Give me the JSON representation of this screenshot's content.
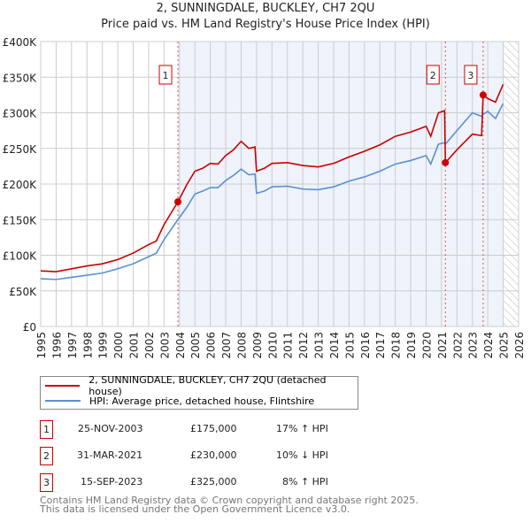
{
  "title": "2, SUNNINGDALE, BUCKLEY, CH7 2QU",
  "subtitle": "Price paid vs. HM Land Registry's House Price Index (HPI)",
  "chart_data": {
    "type": "line",
    "xlim": [
      1995,
      2026
    ],
    "ylim": [
      0,
      400000
    ],
    "yticks": [
      {
        "v": 0,
        "l": "£0"
      },
      {
        "v": 50000,
        "l": "£50K"
      },
      {
        "v": 100000,
        "l": "£100K"
      },
      {
        "v": 150000,
        "l": "£150K"
      },
      {
        "v": 200000,
        "l": "£200K"
      },
      {
        "v": 250000,
        "l": "£250K"
      },
      {
        "v": 300000,
        "l": "£300K"
      },
      {
        "v": 350000,
        "l": "£350K"
      },
      {
        "v": 400000,
        "l": "£400K"
      }
    ],
    "xticks": [
      "1995",
      "1996",
      "1997",
      "1998",
      "1999",
      "2000",
      "2001",
      "2002",
      "2003",
      "2004",
      "2005",
      "2006",
      "2007",
      "2008",
      "2009",
      "2010",
      "2011",
      "2012",
      "2013",
      "2014",
      "2015",
      "2016",
      "2017",
      "2018",
      "2019",
      "2020",
      "2021",
      "2022",
      "2023",
      "2024",
      "2025",
      "2026"
    ],
    "shaded_region": [
      2003.9,
      2025.0
    ],
    "hatched_region": [
      2025.0,
      2026
    ],
    "series": [
      {
        "name": "2, SUNNINGDALE, BUCKLEY, CH7 2QU (detached house)",
        "color": "#cc0000",
        "x": [
          1995,
          1996,
          1997,
          1998,
          1999,
          2000,
          2001,
          2002,
          2002.5,
          2003,
          2003.9,
          2004.5,
          2005,
          2005.5,
          2006,
          2006.5,
          2007,
          2007.5,
          2008,
          2008.5,
          2008.9,
          2009,
          2009.5,
          2010,
          2011,
          2012,
          2013,
          2014,
          2015,
          2016,
          2017,
          2018,
          2019,
          2020,
          2020.3,
          2020.8,
          2021.2,
          2021.25,
          2022,
          2023,
          2023.6,
          2023.7,
          2024,
          2024.5,
          2025
        ],
        "y": [
          78000,
          77000,
          81000,
          85000,
          88000,
          94000,
          103000,
          115000,
          120000,
          143000,
          175000,
          200000,
          218000,
          222000,
          229000,
          228000,
          240000,
          248000,
          260000,
          250000,
          252000,
          218000,
          222000,
          229000,
          230000,
          226000,
          224000,
          229000,
          238000,
          246000,
          255000,
          267000,
          273000,
          281000,
          267000,
          300000,
          303000,
          230000,
          248000,
          270000,
          268000,
          325000,
          320000,
          315000,
          340000
        ]
      },
      {
        "name": "HPI: Average price, detached house, Flintshire",
        "color": "#5b8fd4",
        "x": [
          1995,
          1996,
          1997,
          1998,
          1999,
          2000,
          2001,
          2002,
          2002.5,
          2003,
          2003.9,
          2004.5,
          2005,
          2005.5,
          2006,
          2006.5,
          2007,
          2007.5,
          2008,
          2008.5,
          2008.9,
          2009,
          2009.5,
          2010,
          2011,
          2012,
          2013,
          2014,
          2015,
          2016,
          2017,
          2018,
          2019,
          2020,
          2020.3,
          2020.8,
          2021.2,
          2021.25,
          2022,
          2023,
          2023.6,
          2023.7,
          2024,
          2024.5,
          2025
        ],
        "y": [
          67000,
          66000,
          69000,
          72000,
          75000,
          81000,
          88000,
          98000,
          103000,
          122000,
          150000,
          168000,
          186000,
          190000,
          195000,
          195000,
          205000,
          212000,
          221000,
          213000,
          214000,
          187000,
          190000,
          196000,
          197000,
          193000,
          192000,
          196000,
          204000,
          210000,
          218000,
          228000,
          233000,
          240000,
          228000,
          256000,
          258000,
          256000,
          275000,
          300000,
          295000,
          298000,
          302000,
          292000,
          313000
        ]
      }
    ],
    "sales": [
      {
        "label": "1",
        "x": 2003.9,
        "y": 175000
      },
      {
        "label": "2",
        "x": 2021.25,
        "y": 230000
      },
      {
        "label": "3",
        "x": 2023.7,
        "y": 325000
      }
    ]
  },
  "legend": [
    "2, SUNNINGDALE, BUCKLEY, CH7 2QU (detached house)",
    "HPI: Average price, detached house, Flintshire"
  ],
  "transactions": [
    {
      "n": "1",
      "date": "25-NOV-2003",
      "price": "£175,000",
      "hpi": "17% ↑ HPI"
    },
    {
      "n": "2",
      "date": "31-MAR-2021",
      "price": "£230,000",
      "hpi": "10% ↓ HPI"
    },
    {
      "n": "3",
      "date": "15-SEP-2023",
      "price": "£325,000",
      "hpi": "8% ↑ HPI"
    }
  ],
  "footer": [
    "Contains HM Land Registry data © Crown copyright and database right 2025.",
    "This data is licensed under the Open Government Licence v3.0."
  ]
}
